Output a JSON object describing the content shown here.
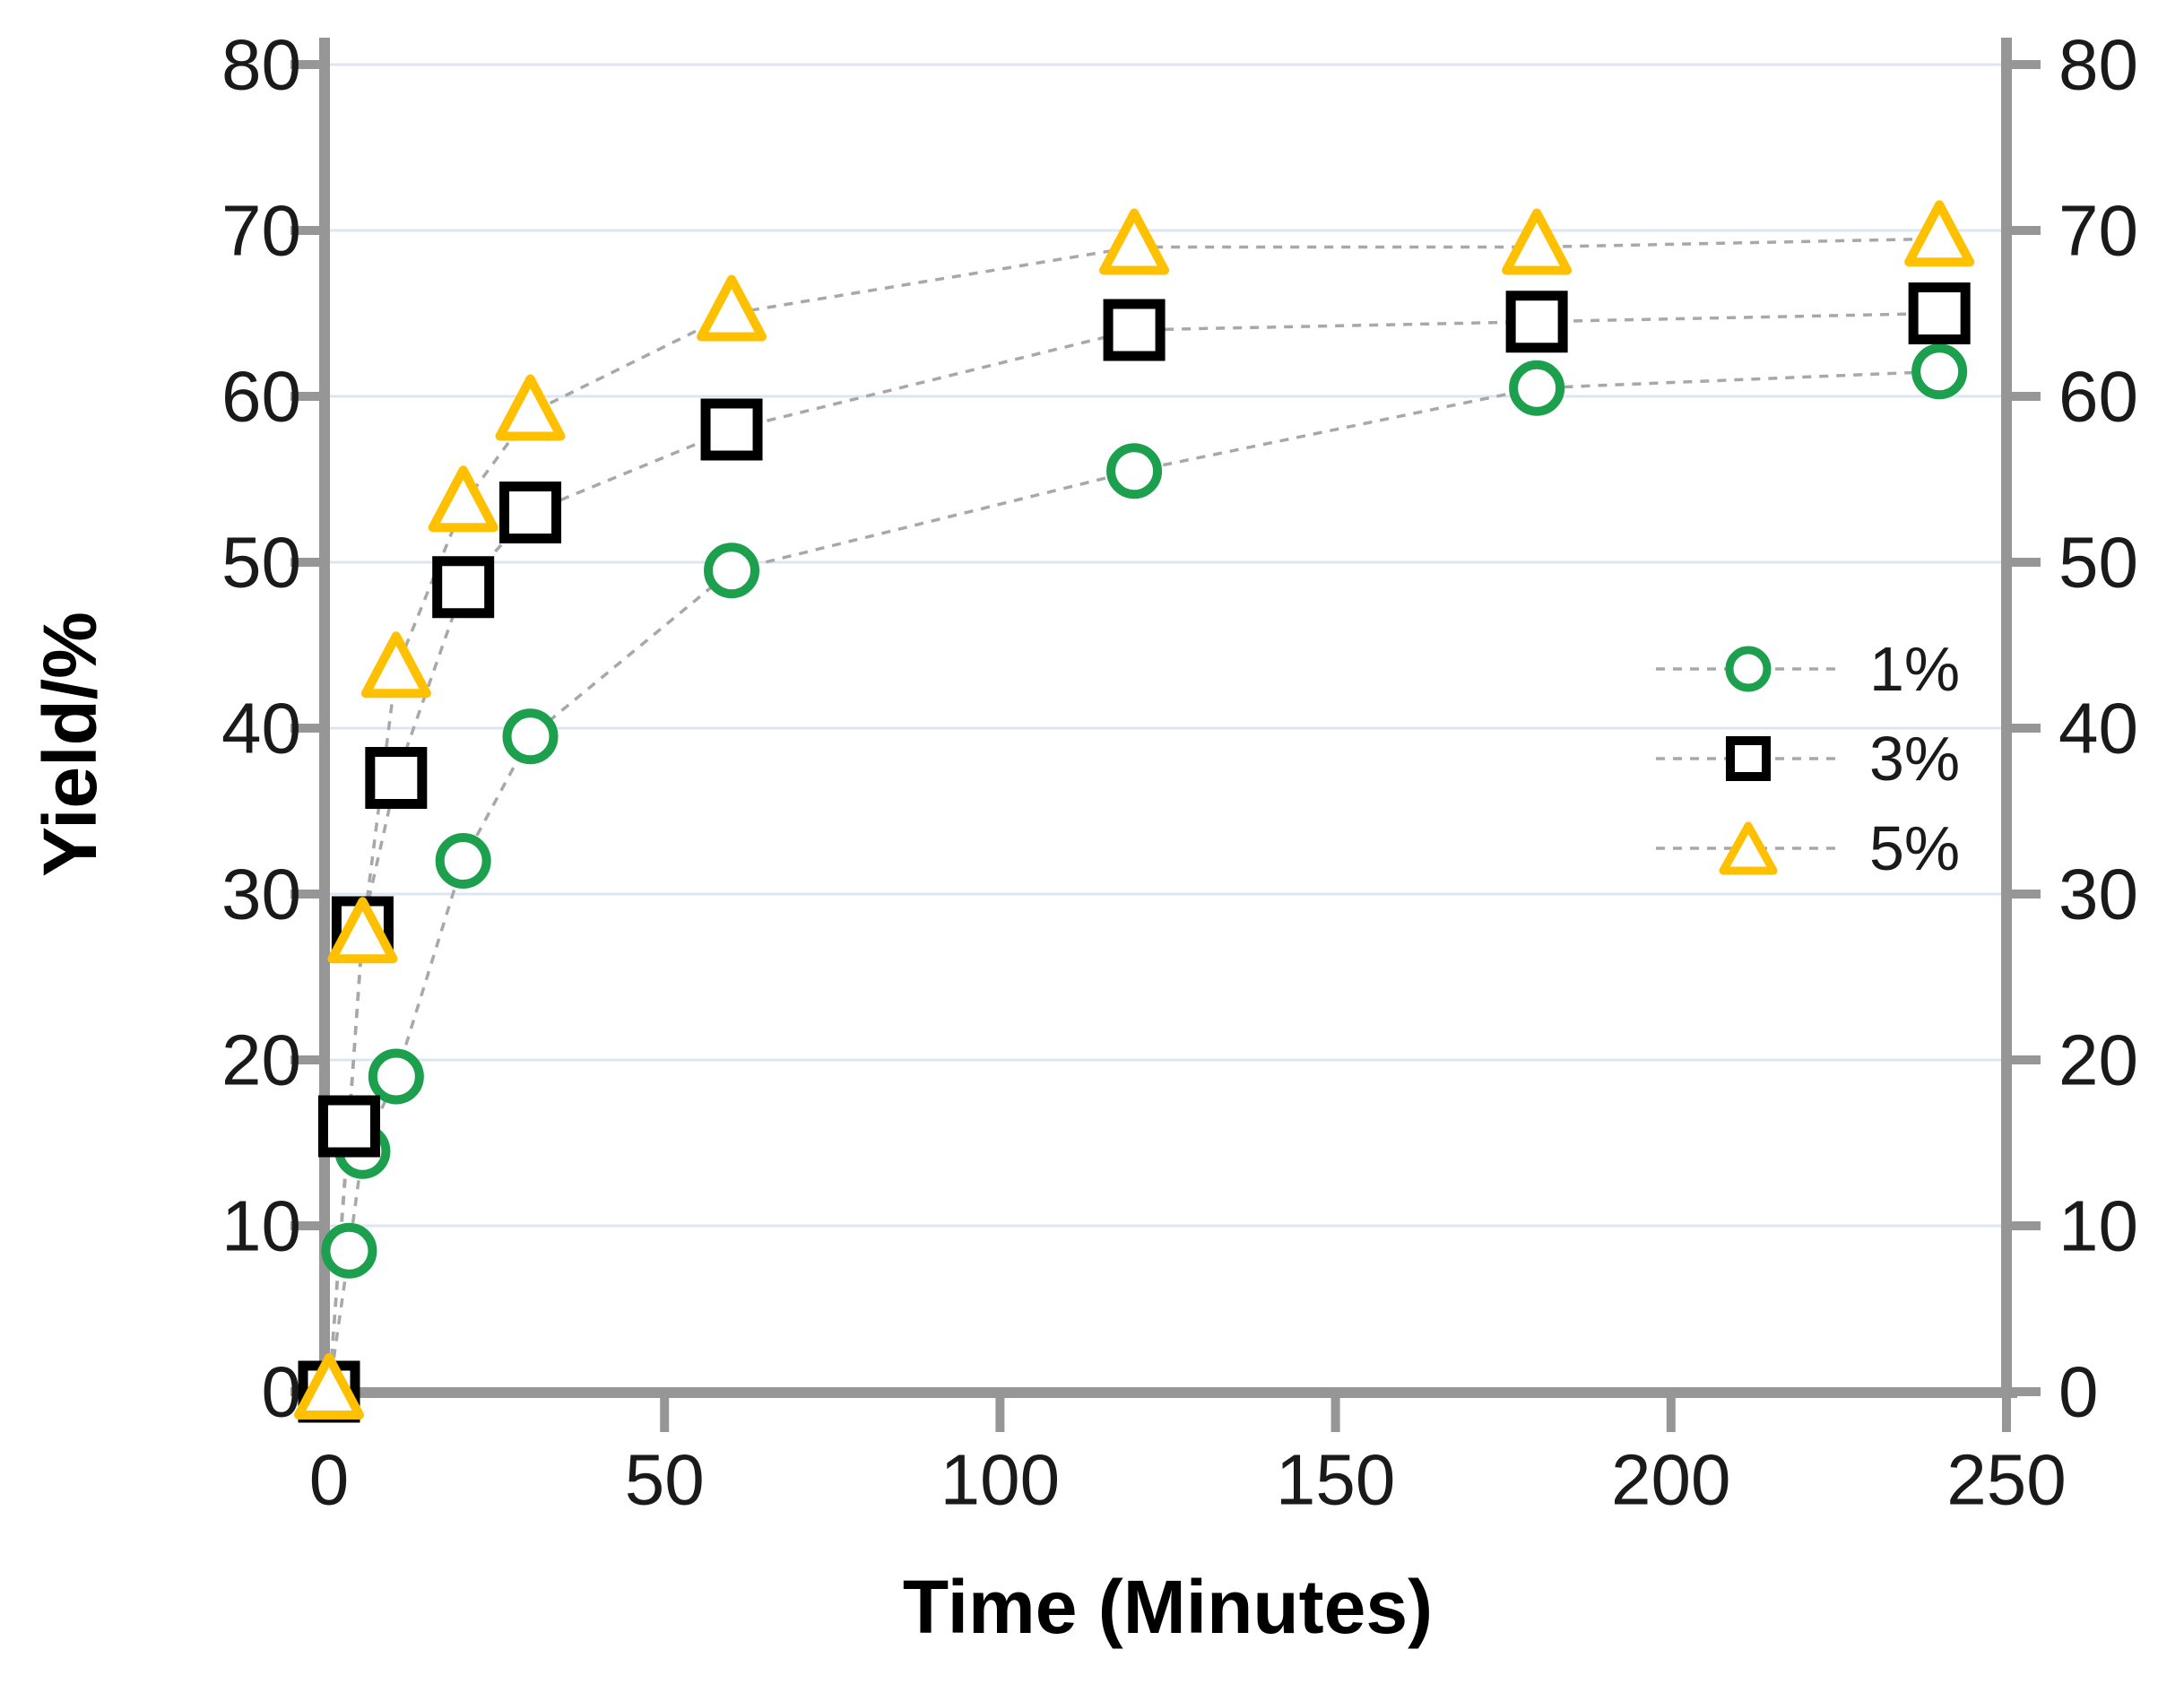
{
  "page": {
    "background": "#ffffff"
  },
  "colors": {
    "axis": "#969696",
    "gridline": "#dde5f3",
    "connector": "#a8a8a8",
    "text": "#1a1a1a",
    "marker_fill": "#ffffff",
    "series_1pct": "#1ca04e",
    "series_3pct": "#000000",
    "series_5pct": "#ffc000"
  },
  "chart_data": {
    "type": "scatter",
    "title": "",
    "xlabel": "Time (Minutes)",
    "ylabel": "Yield/%",
    "right_axis_mirrors_left": true,
    "xlim": [
      0,
      250
    ],
    "ylim": [
      0,
      80
    ],
    "x_ticks": [
      0,
      50,
      100,
      150,
      200,
      250
    ],
    "y_ticks": [
      0,
      10,
      20,
      30,
      40,
      50,
      60,
      70,
      80
    ],
    "grid": "horizontal gridlines every 10 units, pale blue",
    "legend_position": "inside right, middle",
    "connector_line": "gray dashed line between consecutive points",
    "series": [
      {
        "name": "1%",
        "marker": "circle",
        "color": "#1ca04e",
        "points": [
          [
            0,
            0
          ],
          [
            3,
            8.5
          ],
          [
            5,
            14.5
          ],
          [
            10,
            19
          ],
          [
            20,
            32
          ],
          [
            30,
            39.5
          ],
          [
            60,
            49.5
          ],
          [
            120,
            55.5
          ],
          [
            180,
            60.5
          ],
          [
            240,
            61.5
          ]
        ]
      },
      {
        "name": "3%",
        "marker": "square",
        "color": "#000000",
        "points": [
          [
            0,
            0
          ],
          [
            3,
            16
          ],
          [
            5,
            28
          ],
          [
            10,
            37
          ],
          [
            20,
            48.5
          ],
          [
            30,
            53
          ],
          [
            60,
            58
          ],
          [
            120,
            64
          ],
          [
            180,
            64.5
          ],
          [
            240,
            65
          ]
        ]
      },
      {
        "name": "5%",
        "marker": "triangle",
        "color": "#ffc000",
        "points": [
          [
            0,
            0
          ],
          [
            5,
            27.5
          ],
          [
            10,
            43.5
          ],
          [
            20,
            53.5
          ],
          [
            30,
            59
          ],
          [
            60,
            65
          ],
          [
            120,
            69
          ],
          [
            180,
            69
          ],
          [
            240,
            69.5
          ]
        ]
      }
    ]
  }
}
